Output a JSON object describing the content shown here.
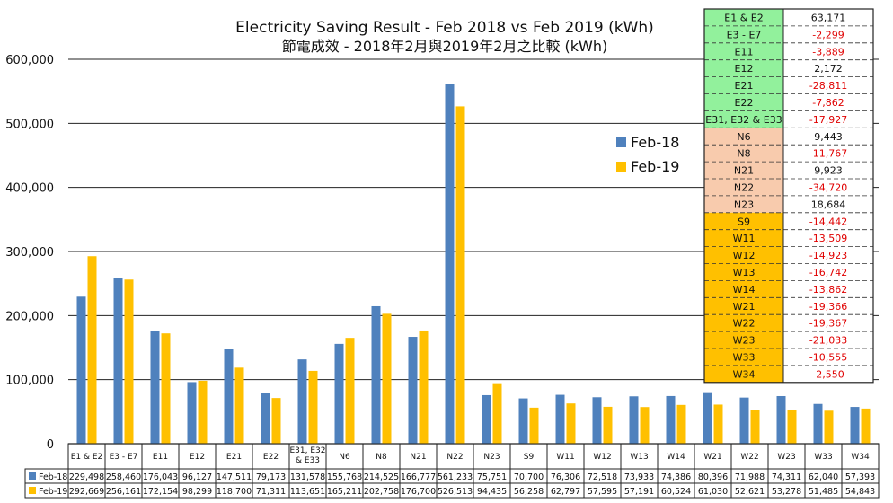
{
  "chart_data": {
    "type": "bar",
    "title": "Electricity Saving Result - Feb 2018 vs Feb 2019 (kWh)",
    "subtitle": "節電成效 - 2018年2月與2019年2月之比較 (kWh)",
    "categories": [
      "E1 & E2",
      "E3 - E7",
      "E11",
      "E12",
      "E21",
      "E22",
      "E31, E32 & E33",
      "N6",
      "N8",
      "N21",
      "N22",
      "N23",
      "S9",
      "W11",
      "W12",
      "W13",
      "W14",
      "W21",
      "W22",
      "W23",
      "W33",
      "W34"
    ],
    "series": [
      {
        "name": "Feb-18",
        "color": "#4f81bd",
        "values": [
          229498,
          258460,
          176043,
          96127,
          147511,
          79173,
          131578,
          155768,
          214525,
          166777,
          561233,
          75751,
          70700,
          76306,
          72518,
          73933,
          74386,
          80396,
          71988,
          74311,
          62040,
          57393
        ]
      },
      {
        "name": "Feb-19",
        "color": "#ffc000",
        "values": [
          292669,
          256161,
          172154,
          98299,
          118700,
          71311,
          113651,
          165211,
          202758,
          176700,
          526513,
          94435,
          56258,
          62797,
          57595,
          57191,
          60524,
          61030,
          52621,
          53278,
          51485,
          54843
        ]
      }
    ],
    "table_values": {
      "feb18": [
        "229,498",
        "258,460",
        "176,043",
        "96,127",
        "147,511",
        "79,173",
        "131,578",
        "155,768",
        "214,525",
        "166,777",
        "561,233",
        "75,751",
        "70,700",
        "76,306",
        "72,518",
        "73,933",
        "74,386",
        "80,396",
        "71,988",
        "74,311",
        "62,040",
        "57,393"
      ],
      "feb19": [
        "292,669",
        "256,161",
        "172,154",
        "98,299",
        "118,700",
        "71,311",
        "113,651",
        "165,211",
        "202,758",
        "176,700",
        "526,513",
        "94,435",
        "56,258",
        "62,797",
        "57,595",
        "57,191",
        "60,524",
        "61,030",
        "52,621",
        "53,278",
        "51,485",
        "54,843"
      ]
    },
    "yticks": [
      "0",
      "100,000",
      "200,000",
      "300,000",
      "400,000",
      "500,000",
      "600,000"
    ],
    "ylim": [
      0,
      600000
    ],
    "grid": true,
    "legend": "right",
    "difference_table": [
      {
        "label": "E1 & E2",
        "value": "63,171",
        "group": "green"
      },
      {
        "label": "E3 - E7",
        "value": "-2,299",
        "group": "green"
      },
      {
        "label": "E11",
        "value": "-3,889",
        "group": "green"
      },
      {
        "label": "E12",
        "value": "2,172",
        "group": "green"
      },
      {
        "label": "E21",
        "value": "-28,811",
        "group": "green"
      },
      {
        "label": "E22",
        "value": "-7,862",
        "group": "green"
      },
      {
        "label": "E31, E32 & E33",
        "value": "-17,927",
        "group": "green"
      },
      {
        "label": "N6",
        "value": "9,443",
        "group": "peach"
      },
      {
        "label": "N8",
        "value": "-11,767",
        "group": "peach"
      },
      {
        "label": "N21",
        "value": "9,923",
        "group": "peach"
      },
      {
        "label": "N22",
        "value": "-34,720",
        "group": "peach"
      },
      {
        "label": "N23",
        "value": "18,684",
        "group": "peach"
      },
      {
        "label": "S9",
        "value": "-14,442",
        "group": "gold"
      },
      {
        "label": "W11",
        "value": "-13,509",
        "group": "gold"
      },
      {
        "label": "W12",
        "value": "-14,923",
        "group": "gold"
      },
      {
        "label": "W13",
        "value": "-16,742",
        "group": "gold"
      },
      {
        "label": "W14",
        "value": "-13,862",
        "group": "gold"
      },
      {
        "label": "W21",
        "value": "-19,366",
        "group": "gold"
      },
      {
        "label": "W22",
        "value": "-19,367",
        "group": "gold"
      },
      {
        "label": "W23",
        "value": "-21,033",
        "group": "gold"
      },
      {
        "label": "W33",
        "value": "-10,555",
        "group": "gold"
      },
      {
        "label": "W34",
        "value": "-2,550",
        "group": "gold"
      }
    ],
    "colors": {
      "green": "#92f19c",
      "peach": "#f8cbad",
      "gold": "#ffc000",
      "negative": "#e00000",
      "positive": "#111111"
    }
  }
}
